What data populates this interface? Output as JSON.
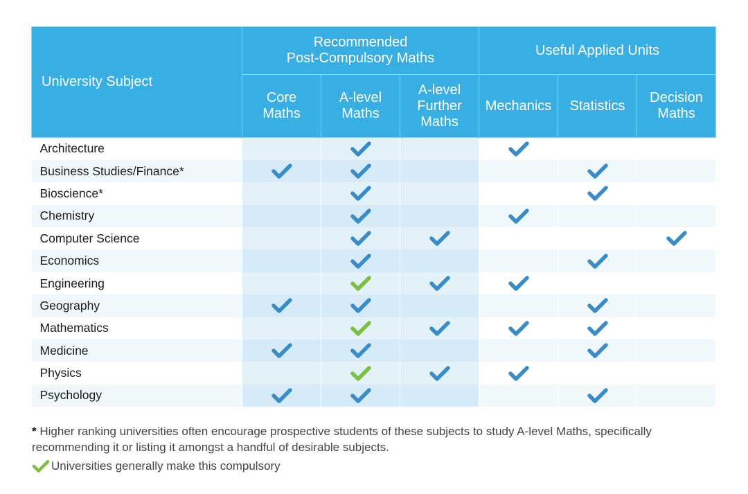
{
  "header": {
    "subject_label": "University Subject",
    "group_recommended": "Recommended Post-Compulsory Maths",
    "group_recommended_line1": "Recommended",
    "group_recommended_line2": "Post-Compulsory Maths",
    "group_applied": "Useful Applied Units",
    "columns": [
      {
        "line1": "Core",
        "line2": "Maths",
        "line3": ""
      },
      {
        "line1": "A-level",
        "line2": "Maths",
        "line3": ""
      },
      {
        "line1": "A-level",
        "line2": "Further",
        "line3": "Maths"
      },
      {
        "line1": "Mechanics",
        "line2": "",
        "line3": ""
      },
      {
        "line1": "Statistics",
        "line2": "",
        "line3": ""
      },
      {
        "line1": "Decision",
        "line2": "Maths",
        "line3": ""
      }
    ]
  },
  "rows": [
    {
      "subject": "Architecture",
      "cells": [
        "",
        "blue",
        "",
        "blue",
        "",
        ""
      ]
    },
    {
      "subject": "Business Studies/Finance*",
      "cells": [
        "blue",
        "blue",
        "",
        "",
        "blue",
        ""
      ]
    },
    {
      "subject": "Bioscience*",
      "cells": [
        "",
        "blue",
        "",
        "",
        "blue",
        ""
      ]
    },
    {
      "subject": "Chemistry",
      "cells": [
        "",
        "blue",
        "",
        "blue",
        "",
        ""
      ]
    },
    {
      "subject": "Computer Science",
      "cells": [
        "",
        "blue",
        "blue",
        "",
        "",
        "blue"
      ]
    },
    {
      "subject": "Economics",
      "cells": [
        "",
        "blue",
        "",
        "",
        "blue",
        ""
      ]
    },
    {
      "subject": "Engineering",
      "cells": [
        "",
        "green",
        "blue",
        "blue",
        "",
        ""
      ]
    },
    {
      "subject": "Geography",
      "cells": [
        "blue",
        "blue",
        "",
        "",
        "blue",
        ""
      ]
    },
    {
      "subject": "Mathematics",
      "cells": [
        "",
        "green",
        "blue",
        "blue",
        "blue",
        ""
      ]
    },
    {
      "subject": "Medicine",
      "cells": [
        "blue",
        "blue",
        "",
        "",
        "blue",
        ""
      ]
    },
    {
      "subject": "Physics",
      "cells": [
        "",
        "green",
        "blue",
        "blue",
        "",
        ""
      ]
    },
    {
      "subject": "Psychology",
      "cells": [
        "blue",
        "blue",
        "",
        "",
        "blue",
        ""
      ]
    }
  ],
  "footnote": {
    "star": "*",
    "text": "Higher ranking universities often encourage prospective students of these subjects to study A-level Maths, specifically recommending it or listing it amongst a handful of desirable subjects."
  },
  "legend": {
    "text": "Universities generally make this compulsory"
  },
  "icons": {
    "blue_tick": "checkmark-icon",
    "green_tick": "checkmark-icon"
  },
  "colors": {
    "header_bg": "#38aee3",
    "tick_blue": "#3a8cc7",
    "tick_green": "#7cc043"
  }
}
